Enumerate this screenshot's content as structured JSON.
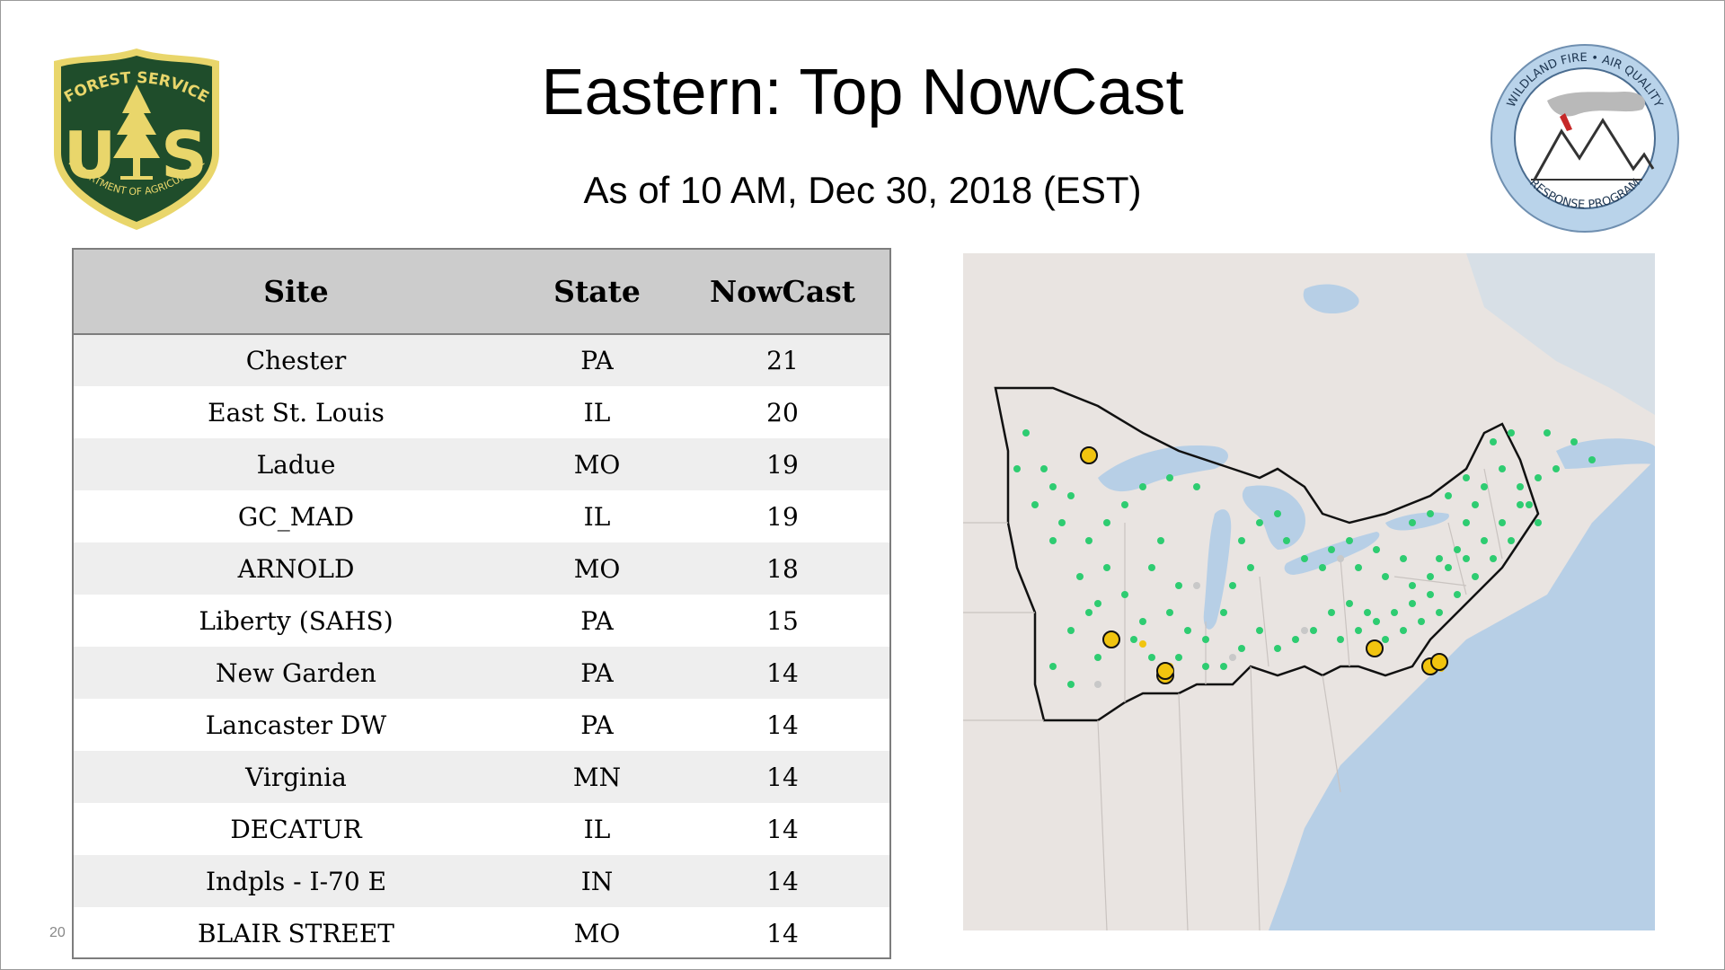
{
  "header": {
    "title": "Eastern: Top NowCast",
    "subtitle": "As of 10 AM, Dec 30, 2018 (EST)"
  },
  "logos": {
    "forest_service": {
      "top_text": "FOREST SERVICE",
      "bottom_text": "DEPARTMENT OF AGRICULTURE",
      "letters": "U S",
      "color_green": "#1f4d2b",
      "color_gold": "#e9d66b"
    },
    "wildland_fire": {
      "top_text": "WILDLAND FIRE • AIR QUALITY",
      "bottom_text": "RESPONSE PROGRAM",
      "ring_color": "#b9d3ea"
    }
  },
  "table": {
    "headers": {
      "site": "Site",
      "state": "State",
      "nowcast": "NowCast"
    },
    "rows": [
      {
        "site": "Chester",
        "state": "PA",
        "nowcast": "21"
      },
      {
        "site": "East St. Louis",
        "state": "IL",
        "nowcast": "20"
      },
      {
        "site": "Ladue",
        "state": "MO",
        "nowcast": "19"
      },
      {
        "site": "GC_MAD",
        "state": "IL",
        "nowcast": "19"
      },
      {
        "site": "ARNOLD",
        "state": "MO",
        "nowcast": "18"
      },
      {
        "site": "Liberty (SAHS)",
        "state": "PA",
        "nowcast": "15"
      },
      {
        "site": "New Garden",
        "state": "PA",
        "nowcast": "14"
      },
      {
        "site": "Lancaster DW",
        "state": "PA",
        "nowcast": "14"
      },
      {
        "site": "Virginia",
        "state": "MN",
        "nowcast": "14"
      },
      {
        "site": "DECATUR",
        "state": "IL",
        "nowcast": "14"
      },
      {
        "site": "Indpls - I-70 E",
        "state": "IN",
        "nowcast": "14"
      },
      {
        "site": "BLAIR STREET",
        "state": "MO",
        "nowcast": "14"
      }
    ]
  },
  "page_number": "20",
  "map": {
    "land_color": "#e9e4e1",
    "water_color": "#b7cfe6",
    "marker_colors": {
      "good": "#2ecc71",
      "moderate": "#f1c40f",
      "unavailable": "#c8c8c8"
    }
  }
}
